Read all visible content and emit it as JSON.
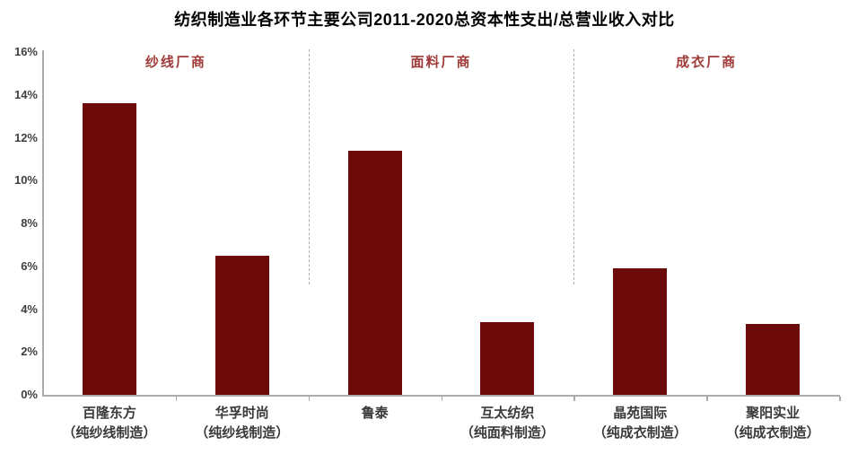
{
  "title": "纺织制造业各环节主要公司2011-2020总资本性支出/总营业收入对比",
  "colors": {
    "bar": "#6c0a0a",
    "segment_label": "#9e3a38",
    "axis": "#ababab",
    "tick_text": "#404040",
    "label_text": "#3a3a3a"
  },
  "y_axis": {
    "ticks": [
      "16%",
      "14%",
      "12%",
      "10%",
      "8%",
      "6%",
      "4%",
      "2%",
      "0%"
    ],
    "max": 16,
    "min": 0
  },
  "chart_data": {
    "type": "bar",
    "title": "纺织制造业各环节主要公司2011-2020总资本性支出/总营业收入对比",
    "xlabel": "",
    "ylabel": "",
    "unit": "%",
    "ylim": [
      0,
      16
    ],
    "grid": false,
    "legend": null,
    "categories": [
      "百隆东方",
      "华孚时尚",
      "鲁泰",
      "互太纺织",
      "晶苑国际",
      "聚阳实业"
    ],
    "category_subtitles": [
      "（纯纱线制造）",
      "（纯纱线制造）",
      "",
      "（纯面料制造）",
      "（纯成衣制造）",
      "（纯成衣制造）"
    ],
    "values": [
      13.6,
      6.5,
      11.4,
      3.4,
      5.9,
      3.3
    ],
    "groups": [
      {
        "label": "纱线厂商",
        "span": [
          0,
          1
        ]
      },
      {
        "label": "面料厂商",
        "span": [
          2,
          3
        ]
      },
      {
        "label": "成衣厂商",
        "span": [
          4,
          5
        ]
      }
    ]
  }
}
